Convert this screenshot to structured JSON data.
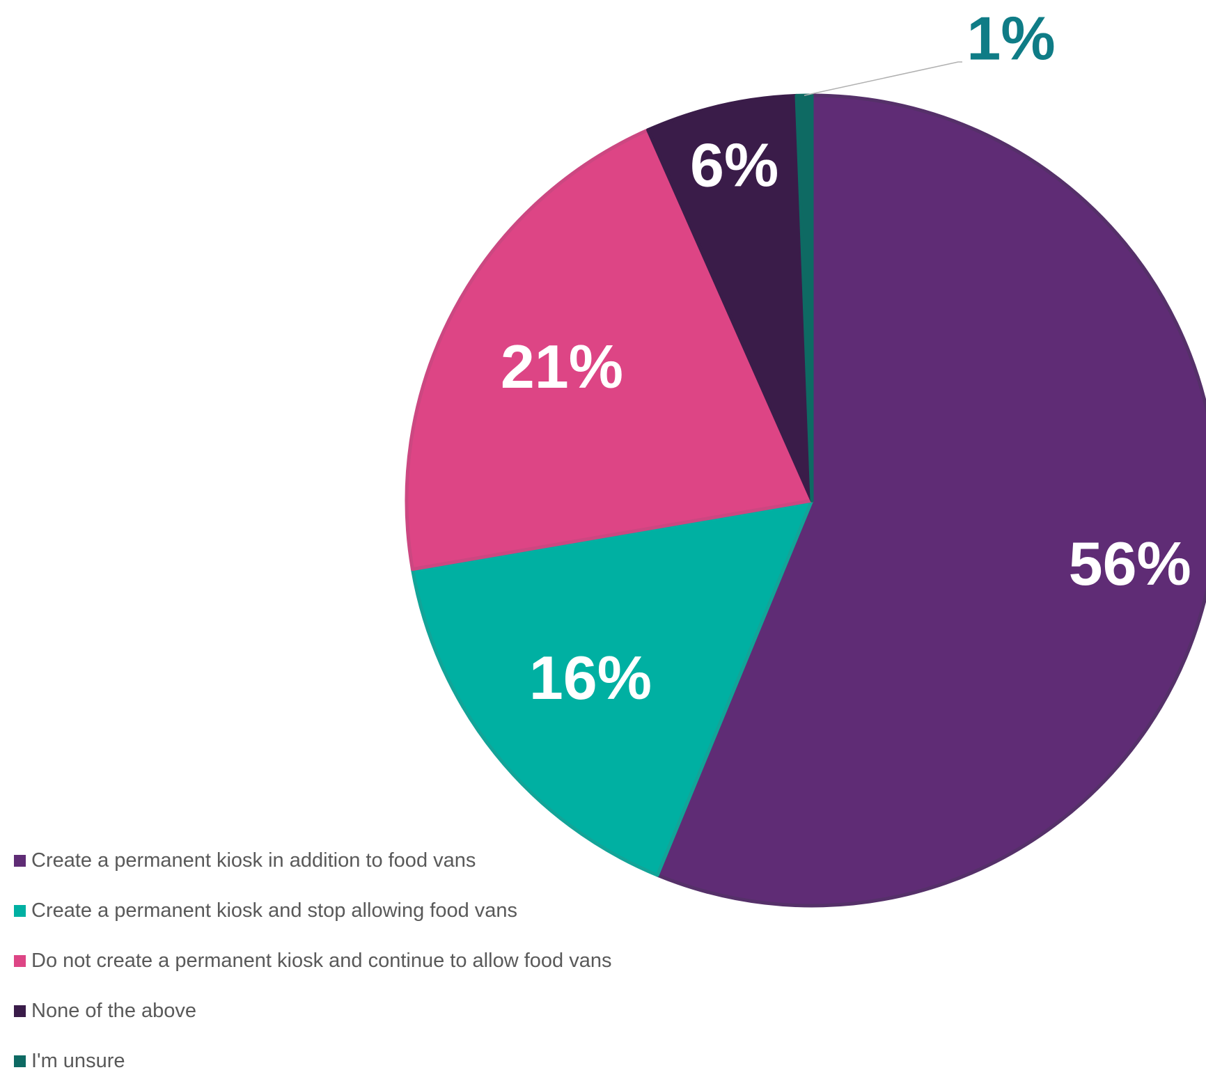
{
  "chart_data": {
    "type": "pie",
    "title": "",
    "start_angle_deg": 0,
    "direction": "clockwise",
    "legend_position": "bottom-left",
    "slices": [
      {
        "label": "Create a permanent kiosk in addition to food vans",
        "value": 56,
        "display": "56%",
        "color": "#5f2c75",
        "edge": "#553069",
        "label_color": "#ffffff"
      },
      {
        "label": "Create a permanent kiosk and stop allowing food vans",
        "value": 16,
        "display": "16%",
        "color": "#00b0a2",
        "edge": "#12a498",
        "label_color": "#ffffff"
      },
      {
        "label": "Do not create a permanent kiosk and continue to allow food vans",
        "value": 21,
        "display": "21%",
        "color": "#dd4585",
        "edge": "#cc4781",
        "label_color": "#ffffff"
      },
      {
        "label": "None of the above",
        "value": 6,
        "display": "6%",
        "color": "#3a1c49",
        "edge": "#3a1c49",
        "label_color": "#ffffff"
      },
      {
        "label": "I'm unsure",
        "value": 0.6,
        "display": "1%",
        "color": "#0e6a63",
        "edge": "#0e6a63",
        "label_color": "#0f7c86"
      }
    ]
  }
}
